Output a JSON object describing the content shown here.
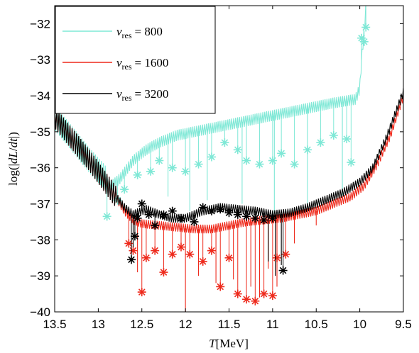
{
  "chart_data": {
    "type": "line",
    "title": "",
    "xlabel": "T[MeV]",
    "ylabel": "log(|dL/dt|)",
    "xlim": [
      13.5,
      9.5
    ],
    "x_reversed": true,
    "ylim": [
      -40,
      -31.5
    ],
    "x_ticks": [
      "13.5",
      "13",
      "12.5",
      "12",
      "11.5",
      "11",
      "10.5",
      "10",
      "9.5"
    ],
    "y_ticks": [
      "−32",
      "−33",
      "−34",
      "−35",
      "−36",
      "−37",
      "−38",
      "−39",
      "−40"
    ],
    "x_tick_values": [
      13.5,
      13,
      12.5,
      12,
      11.5,
      11,
      10.5,
      10,
      9.5
    ],
    "y_tick_values": [
      -32,
      -33,
      -34,
      -35,
      -36,
      -37,
      -38,
      -39,
      -40
    ],
    "grid": false,
    "legend_position": "top-left",
    "series": [
      {
        "name": "v_res = 800",
        "legend_var": "v",
        "legend_sub": "res",
        "legend_value": "= 800",
        "color": "#7fe8d6",
        "line_points": [
          [
            13.5,
            -34.6
          ],
          [
            13.3,
            -35.2
          ],
          [
            13.1,
            -35.8
          ],
          [
            12.95,
            -36.2
          ],
          [
            12.85,
            -36.5
          ],
          [
            12.75,
            -36.3
          ],
          [
            12.6,
            -35.8
          ],
          [
            12.45,
            -35.5
          ],
          [
            12.3,
            -35.3
          ],
          [
            12.1,
            -35.1
          ],
          [
            11.9,
            -35.0
          ],
          [
            11.7,
            -34.9
          ],
          [
            11.5,
            -34.8
          ],
          [
            11.3,
            -34.7
          ],
          [
            11.1,
            -34.6
          ],
          [
            10.9,
            -34.5
          ],
          [
            10.7,
            -34.4
          ],
          [
            10.5,
            -34.3
          ],
          [
            10.3,
            -34.2
          ],
          [
            10.05,
            -34.1
          ],
          [
            10.0,
            -33.8
          ],
          [
            9.98,
            -33.0
          ],
          [
            9.95,
            -32.2
          ],
          [
            9.93,
            -31.5
          ]
        ],
        "markers": [
          [
            12.9,
            -37.35
          ],
          [
            12.78,
            -36.9
          ],
          [
            12.7,
            -36.6
          ],
          [
            12.55,
            -36.2
          ],
          [
            12.4,
            -36.1
          ],
          [
            12.3,
            -35.8
          ],
          [
            12.15,
            -36.0
          ],
          [
            12.0,
            -36.1
          ],
          [
            11.85,
            -35.9
          ],
          [
            11.7,
            -35.7
          ],
          [
            11.55,
            -35.3
          ],
          [
            11.4,
            -35.5
          ],
          [
            11.3,
            -35.8
          ],
          [
            11.15,
            -35.9
          ],
          [
            11.0,
            -35.8
          ],
          [
            10.9,
            -35.6
          ],
          [
            10.75,
            -35.9
          ],
          [
            10.6,
            -35.5
          ],
          [
            10.45,
            -35.3
          ],
          [
            10.3,
            -35.1
          ],
          [
            10.15,
            -35.2
          ],
          [
            10.1,
            -35.85
          ],
          [
            9.98,
            -32.4
          ],
          [
            9.95,
            -32.5
          ],
          [
            9.93,
            -32.1
          ]
        ],
        "dips": [
          [
            12.2,
            -36.8
          ],
          [
            11.95,
            -37.2
          ],
          [
            11.75,
            -36.9
          ],
          [
            11.35,
            -37.0
          ],
          [
            10.98,
            -37.3
          ],
          [
            10.6,
            -37.1
          ],
          [
            10.2,
            -36.9
          ]
        ]
      },
      {
        "name": "v_res = 1600",
        "legend_var": "v",
        "legend_sub": "res",
        "legend_value": "= 1600",
        "color": "#ee2a1c",
        "line_points": [
          [
            13.5,
            -34.6
          ],
          [
            13.3,
            -35.2
          ],
          [
            13.1,
            -35.8
          ],
          [
            12.95,
            -36.3
          ],
          [
            12.8,
            -36.8
          ],
          [
            12.7,
            -37.2
          ],
          [
            12.6,
            -37.45
          ],
          [
            12.5,
            -37.55
          ],
          [
            12.3,
            -37.6
          ],
          [
            12.1,
            -37.65
          ],
          [
            11.9,
            -37.7
          ],
          [
            11.7,
            -37.7
          ],
          [
            11.5,
            -37.6
          ],
          [
            11.3,
            -37.5
          ],
          [
            11.1,
            -37.45
          ],
          [
            10.9,
            -37.4
          ],
          [
            10.7,
            -37.3
          ],
          [
            10.5,
            -37.2
          ],
          [
            10.3,
            -37.0
          ],
          [
            10.1,
            -36.8
          ],
          [
            9.95,
            -36.5
          ],
          [
            9.8,
            -35.9
          ],
          [
            9.65,
            -35.1
          ],
          [
            9.5,
            -34.0
          ]
        ],
        "markers": [
          [
            12.65,
            -38.1
          ],
          [
            12.6,
            -38.3
          ],
          [
            12.5,
            -39.45
          ],
          [
            12.45,
            -38.5
          ],
          [
            12.35,
            -38.3
          ],
          [
            12.25,
            -38.9
          ],
          [
            12.15,
            -38.4
          ],
          [
            12.05,
            -38.2
          ],
          [
            11.95,
            -38.4
          ],
          [
            11.8,
            -38.6
          ],
          [
            11.7,
            -38.3
          ],
          [
            11.6,
            -39.3
          ],
          [
            11.5,
            -38.5
          ],
          [
            11.4,
            -39.5
          ],
          [
            11.3,
            -39.65
          ],
          [
            11.2,
            -39.7
          ],
          [
            11.1,
            -39.5
          ],
          [
            11.0,
            -39.55
          ],
          [
            10.95,
            -38.5
          ],
          [
            10.85,
            -38.4
          ]
        ],
        "dips": [
          [
            12.55,
            -38.9
          ],
          [
            12.0,
            -40.0
          ],
          [
            11.85,
            -39.0
          ],
          [
            11.65,
            -39.2
          ],
          [
            11.45,
            -39.1
          ],
          [
            11.25,
            -39.3
          ],
          [
            11.15,
            -39.6
          ],
          [
            11.05,
            -38.8
          ],
          [
            10.95,
            -39.3
          ],
          [
            10.75,
            -38.1
          ],
          [
            10.5,
            -37.6
          ]
        ]
      },
      {
        "name": "v_res = 3200",
        "legend_var": "v",
        "legend_sub": "res",
        "legend_value": "= 3200",
        "color": "#000000",
        "line_points": [
          [
            13.5,
            -34.6
          ],
          [
            13.3,
            -35.2
          ],
          [
            13.1,
            -35.8
          ],
          [
            12.95,
            -36.3
          ],
          [
            12.8,
            -36.8
          ],
          [
            12.7,
            -37.1
          ],
          [
            12.6,
            -37.3
          ],
          [
            12.45,
            -37.15
          ],
          [
            12.3,
            -37.3
          ],
          [
            12.15,
            -37.4
          ],
          [
            12.0,
            -37.4
          ],
          [
            11.8,
            -37.2
          ],
          [
            11.6,
            -37.1
          ],
          [
            11.4,
            -37.15
          ],
          [
            11.2,
            -37.2
          ],
          [
            11.0,
            -37.3
          ],
          [
            10.8,
            -37.25
          ],
          [
            10.6,
            -37.1
          ],
          [
            10.4,
            -36.9
          ],
          [
            10.2,
            -36.7
          ],
          [
            10.0,
            -36.4
          ],
          [
            9.85,
            -36.0
          ],
          [
            9.7,
            -35.2
          ],
          [
            9.5,
            -33.9
          ]
        ],
        "markers": [
          [
            12.62,
            -38.55
          ],
          [
            12.58,
            -37.9
          ],
          [
            12.55,
            -37.4
          ],
          [
            12.5,
            -37.0
          ],
          [
            12.42,
            -37.3
          ],
          [
            12.35,
            -37.6
          ],
          [
            12.25,
            -37.3
          ],
          [
            12.15,
            -37.2
          ],
          [
            12.05,
            -37.4
          ],
          [
            11.9,
            -37.5
          ],
          [
            11.8,
            -37.1
          ],
          [
            11.7,
            -37.2
          ],
          [
            11.6,
            -37.15
          ],
          [
            11.5,
            -37.25
          ],
          [
            11.4,
            -37.3
          ],
          [
            11.3,
            -37.35
          ],
          [
            11.2,
            -37.4
          ],
          [
            11.1,
            -37.45
          ],
          [
            11.0,
            -37.4
          ],
          [
            10.88,
            -38.85
          ]
        ],
        "dips": [
          [
            12.6,
            -38.2
          ],
          [
            11.05,
            -38.6
          ],
          [
            10.97,
            -39.0
          ],
          [
            10.9,
            -38.7
          ]
        ]
      }
    ]
  }
}
